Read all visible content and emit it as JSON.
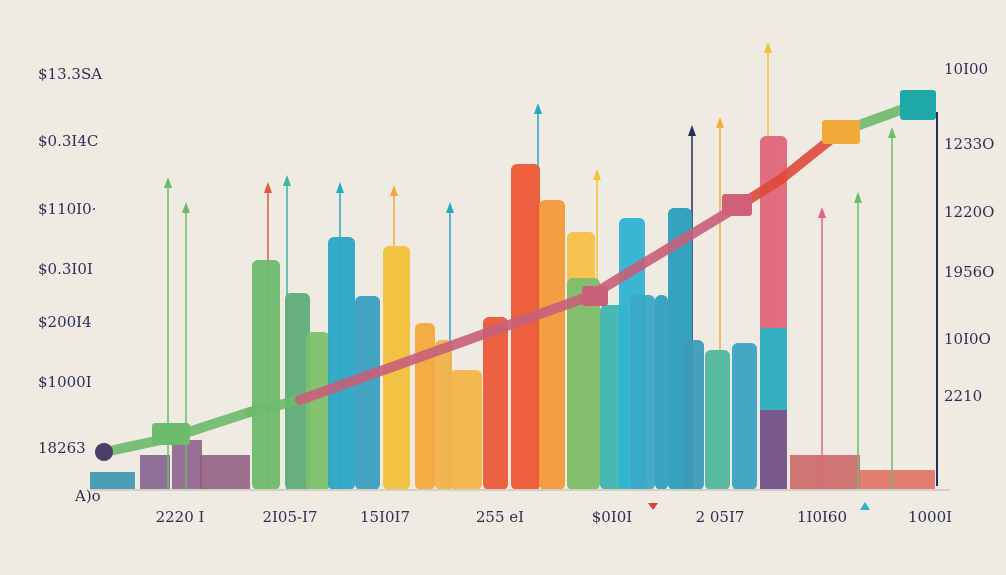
{
  "left_labels": [
    "$13.3SA",
    "$0.3I4C",
    "$110I0·",
    "$0.3I0I",
    "$200I4",
    "$1000I",
    "18263"
  ],
  "right_labels": [
    "10I00",
    "1233O",
    "1220O",
    "1956O",
    "10I0O",
    "2210"
  ],
  "bottom_labels": [
    "2220 I",
    "2I05-I7",
    "15I0I7",
    "255 eI",
    "$0I0I",
    "2 05I7",
    "1I0I60",
    "1000I"
  ],
  "corner_label": "A)o"
}
